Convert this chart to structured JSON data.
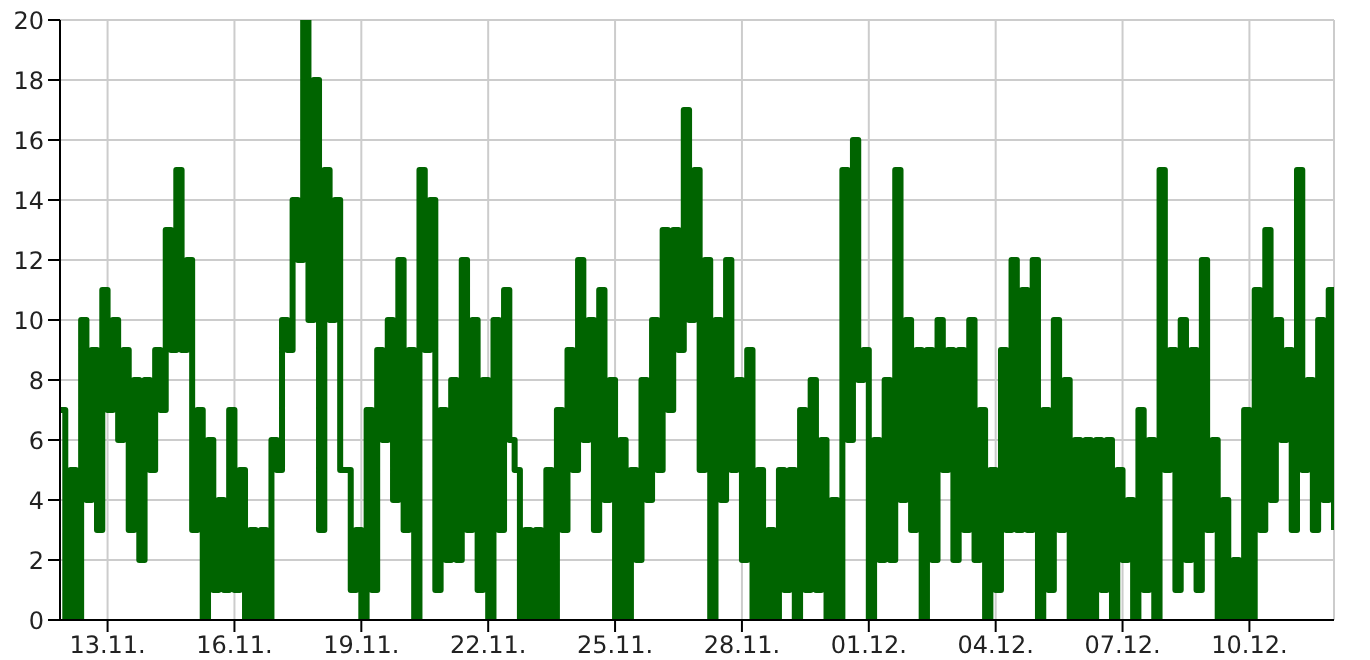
{
  "chart_data": {
    "type": "step",
    "xlim": [
      "--11-11T21:00",
      "--12-12T00:00"
    ],
    "ylim": [
      0,
      20
    ],
    "xticks": [
      {
        "value": "--11-13",
        "label": "13.11."
      },
      {
        "value": "--11-16",
        "label": "16.11."
      },
      {
        "value": "--11-19",
        "label": "19.11."
      },
      {
        "value": "--11-22",
        "label": "22.11."
      },
      {
        "value": "--11-25",
        "label": "25.11."
      },
      {
        "value": "--11-28",
        "label": "28.11."
      },
      {
        "value": "--12-01",
        "label": "01.12."
      },
      {
        "value": "--12-04",
        "label": "04.12."
      },
      {
        "value": "--12-07",
        "label": "07.12."
      },
      {
        "value": "--12-10",
        "label": "10.12."
      }
    ],
    "yticks": [
      0,
      2,
      4,
      6,
      8,
      10,
      12,
      14,
      16,
      18,
      20
    ],
    "grid": true,
    "marker": "none",
    "x": [
      "--11-11T21:00",
      "--11-12T00:00",
      "--11-12T03:00",
      "--11-12T06:00",
      "--11-12T09:00",
      "--11-12T12:00",
      "--11-12T15:00",
      "--11-12T18:00",
      "--11-12T21:00",
      "--11-13T00:00",
      "--11-13T03:00",
      "--11-13T06:00",
      "--11-13T09:00",
      "--11-13T12:00",
      "--11-13T15:00",
      "--11-13T18:00",
      "--11-13T21:00",
      "--11-14T00:00",
      "--11-14T03:00",
      "--11-14T06:00",
      "--11-14T09:00",
      "--11-14T12:00",
      "--11-14T15:00",
      "--11-14T18:00",
      "--11-14T21:00",
      "--11-15T00:00",
      "--11-15T03:00",
      "--11-15T06:00",
      "--11-15T09:00",
      "--11-15T12:00",
      "--11-15T15:00",
      "--11-15T18:00",
      "--11-15T21:00",
      "--11-16T00:00",
      "--11-16T03:00",
      "--11-16T06:00",
      "--11-16T09:00",
      "--11-16T12:00",
      "--11-16T15:00",
      "--11-16T18:00",
      "--11-16T21:00",
      "--11-17T00:00",
      "--11-17T03:00",
      "--11-17T06:00",
      "--11-17T09:00",
      "--11-17T12:00",
      "--11-17T15:00",
      "--11-17T18:00",
      "--11-17T21:00",
      "--11-18T00:00",
      "--11-18T03:00",
      "--11-18T06:00",
      "--11-18T09:00",
      "--11-18T12:00",
      "--11-18T15:00",
      "--11-18T18:00",
      "--11-18T21:00",
      "--11-19T00:00",
      "--11-19T03:00",
      "--11-19T06:00",
      "--11-19T09:00",
      "--11-19T12:00",
      "--11-19T15:00",
      "--11-19T18:00",
      "--11-19T21:00",
      "--11-20T00:00",
      "--11-20T03:00",
      "--11-20T06:00",
      "--11-20T09:00",
      "--11-20T12:00",
      "--11-20T15:00",
      "--11-20T18:00",
      "--11-20T21:00",
      "--11-21T00:00",
      "--11-21T03:00",
      "--11-21T06:00",
      "--11-21T09:00",
      "--11-21T12:00",
      "--11-21T15:00",
      "--11-21T18:00",
      "--11-21T21:00",
      "--11-22T00:00",
      "--11-22T03:00",
      "--11-22T06:00",
      "--11-22T09:00",
      "--11-22T12:00",
      "--11-22T15:00",
      "--11-22T18:00",
      "--11-22T21:00",
      "--11-23T00:00",
      "--11-23T03:00",
      "--11-23T06:00",
      "--11-23T09:00",
      "--11-23T12:00",
      "--11-23T15:00",
      "--11-23T18:00",
      "--11-23T21:00",
      "--11-24T00:00",
      "--11-24T03:00",
      "--11-24T06:00",
      "--11-24T09:00",
      "--11-24T12:00",
      "--11-24T15:00",
      "--11-24T18:00",
      "--11-24T21:00",
      "--11-25T00:00",
      "--11-25T03:00",
      "--11-25T06:00",
      "--11-25T09:00",
      "--11-25T12:00",
      "--11-25T15:00",
      "--11-25T18:00",
      "--11-25T21:00",
      "--11-26T00:00",
      "--11-26T03:00",
      "--11-26T06:00",
      "--11-26T09:00",
      "--11-26T12:00",
      "--11-26T15:00",
      "--11-26T18:00",
      "--11-26T21:00",
      "--11-27T00:00",
      "--11-27T03:00",
      "--11-27T06:00",
      "--11-27T09:00",
      "--11-27T12:00",
      "--11-27T15:00",
      "--11-27T18:00",
      "--11-27T21:00",
      "--11-28T00:00",
      "--11-28T03:00",
      "--11-28T06:00",
      "--11-28T09:00",
      "--11-28T12:00",
      "--11-28T15:00",
      "--11-28T18:00",
      "--11-28T21:00",
      "--11-29T00:00",
      "--11-29T03:00",
      "--11-29T06:00",
      "--11-29T09:00",
      "--11-29T12:00",
      "--11-29T15:00",
      "--11-29T18:00",
      "--11-29T21:00",
      "--11-30T00:00",
      "--11-30T03:00",
      "--11-30T06:00",
      "--11-30T09:00",
      "--11-30T12:00",
      "--11-30T15:00",
      "--11-30T18:00",
      "--11-30T21:00",
      "--12-01T00:00",
      "--12-01T03:00",
      "--12-01T06:00",
      "--12-01T09:00",
      "--12-01T12:00",
      "--12-01T15:00",
      "--12-01T18:00",
      "--12-01T21:00",
      "--12-02T00:00",
      "--12-02T03:00",
      "--12-02T06:00",
      "--12-02T09:00",
      "--12-02T12:00",
      "--12-02T15:00",
      "--12-02T18:00",
      "--12-02T21:00",
      "--12-03T00:00",
      "--12-03T03:00",
      "--12-03T06:00",
      "--12-03T09:00",
      "--12-03T12:00",
      "--12-03T15:00",
      "--12-03T18:00",
      "--12-03T21:00",
      "--12-04T00:00",
      "--12-04T03:00",
      "--12-04T06:00",
      "--12-04T09:00",
      "--12-04T12:00",
      "--12-04T15:00",
      "--12-04T18:00",
      "--12-04T21:00",
      "--12-05T00:00",
      "--12-05T03:00",
      "--12-05T06:00",
      "--12-05T09:00",
      "--12-05T12:00",
      "--12-05T15:00",
      "--12-05T18:00",
      "--12-05T21:00",
      "--12-06T00:00",
      "--12-06T03:00",
      "--12-06T06:00",
      "--12-06T09:00",
      "--12-06T12:00",
      "--12-06T15:00",
      "--12-06T18:00",
      "--12-06T21:00",
      "--12-07T00:00",
      "--12-07T03:00",
      "--12-07T06:00",
      "--12-07T09:00",
      "--12-07T12:00",
      "--12-07T15:00",
      "--12-07T18:00",
      "--12-07T21:00",
      "--12-08T00:00",
      "--12-08T03:00",
      "--12-08T06:00",
      "--12-08T09:00",
      "--12-08T12:00",
      "--12-08T15:00",
      "--12-08T18:00",
      "--12-08T21:00",
      "--12-09T00:00",
      "--12-09T03:00",
      "--12-09T06:00",
      "--12-09T09:00",
      "--12-09T12:00",
      "--12-09T15:00",
      "--12-09T18:00",
      "--12-09T21:00",
      "--12-10T00:00",
      "--12-10T03:00",
      "--12-10T06:00",
      "--12-10T09:00",
      "--12-10T12:00",
      "--12-10T15:00",
      "--12-10T18:00",
      "--12-10T21:00",
      "--12-11T00:00",
      "--12-11T03:00",
      "--12-11T06:00",
      "--12-11T09:00",
      "--12-11T12:00",
      "--12-11T15:00",
      "--12-11T18:00",
      "--12-11T21:00",
      "--12-12T00:00"
    ],
    "series": [
      {
        "color": "#006400",
        "values": [
          7,
          0,
          5,
          0,
          10,
          4,
          9,
          3,
          11,
          7,
          10,
          6,
          9,
          3,
          8,
          2,
          8,
          5,
          9,
          7,
          13,
          9,
          15,
          9,
          12,
          3,
          7,
          0,
          6,
          1,
          4,
          1,
          7,
          1,
          5,
          0,
          3,
          0,
          3,
          0,
          6,
          5,
          10,
          9,
          14,
          12,
          20,
          10,
          18,
          3,
          15,
          10,
          14,
          5,
          5,
          1,
          3,
          0,
          7,
          1,
          9,
          6,
          10,
          4,
          12,
          3,
          9,
          0,
          15,
          9,
          14,
          1,
          7,
          2,
          8,
          2,
          12,
          3,
          10,
          1,
          8,
          0,
          10,
          3,
          11,
          6,
          5,
          0,
          3,
          0,
          3,
          0,
          5,
          0,
          7,
          3,
          9,
          5,
          12,
          6,
          10,
          3,
          11,
          4,
          8,
          0,
          6,
          0,
          5,
          2,
          8,
          4,
          10,
          5,
          13,
          7,
          13,
          9,
          17,
          10,
          15,
          5,
          12,
          0,
          10,
          4,
          12,
          5,
          8,
          2,
          9,
          0,
          5,
          0,
          3,
          0,
          5,
          1,
          5,
          0,
          7,
          1,
          8,
          1,
          6,
          0,
          4,
          0,
          15,
          6,
          16,
          8,
          9,
          0,
          6,
          2,
          8,
          2,
          15,
          4,
          10,
          3,
          9,
          0,
          9,
          2,
          10,
          5,
          9,
          2,
          9,
          3,
          10,
          2,
          7,
          0,
          5,
          1,
          9,
          3,
          12,
          3,
          11,
          3,
          12,
          0,
          7,
          1,
          10,
          3,
          8,
          0,
          6,
          0,
          6,
          0,
          6,
          1,
          6,
          0,
          5,
          2,
          4,
          0,
          7,
          1,
          6,
          0,
          15,
          5,
          9,
          1,
          10,
          2,
          9,
          1,
          12,
          3,
          6,
          0,
          4,
          0,
          2,
          0,
          7,
          0,
          11,
          3,
          13,
          4,
          10,
          6,
          9,
          3,
          15,
          5,
          8,
          3,
          10,
          4,
          11,
          3
        ]
      }
    ]
  }
}
